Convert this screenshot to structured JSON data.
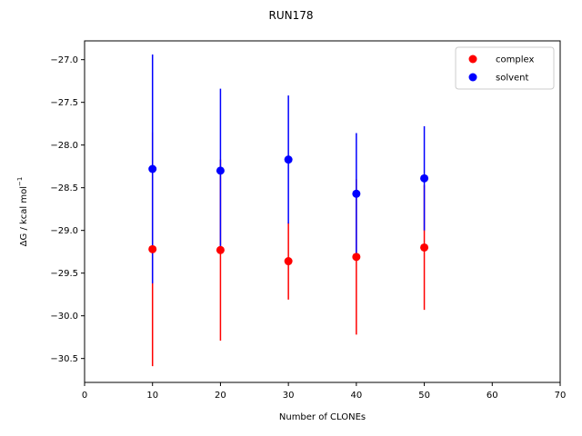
{
  "chart_data": {
    "type": "scatter",
    "title": "RUN178",
    "xlabel": "Number of CLONEs",
    "ylabel": "ΔG / kcal mol",
    "ylabel_superscript": "−1",
    "xlim": [
      0,
      70
    ],
    "ylim": [
      -30.78,
      -26.78
    ],
    "xticks": [
      0,
      10,
      20,
      30,
      40,
      50,
      60,
      70
    ],
    "yticks": [
      -30.5,
      -30.0,
      -29.5,
      -29.0,
      -28.5,
      -28.0,
      -27.5,
      -27.0
    ],
    "xtick_labels": [
      "0",
      "10",
      "20",
      "30",
      "40",
      "50",
      "60",
      "70"
    ],
    "ytick_labels": [
      "−30.5",
      "−30.0",
      "−29.5",
      "−29.0",
      "−28.5",
      "−28.0",
      "−27.5",
      "−27.0"
    ],
    "grid": false,
    "legend_position": "top-right",
    "series": [
      {
        "name": "complex",
        "color": "#ff0000",
        "x": [
          10,
          20,
          30,
          40,
          50
        ],
        "y": [
          -29.22,
          -29.23,
          -29.36,
          -29.31,
          -29.2
        ],
        "err": [
          1.37,
          1.06,
          0.45,
          0.91,
          0.73
        ]
      },
      {
        "name": "solvent",
        "color": "#0000ff",
        "x": [
          10,
          20,
          30,
          40,
          50
        ],
        "y": [
          -28.28,
          -28.3,
          -28.17,
          -28.57,
          -28.39
        ],
        "err": [
          1.34,
          0.96,
          0.75,
          0.71,
          0.61
        ]
      }
    ]
  }
}
